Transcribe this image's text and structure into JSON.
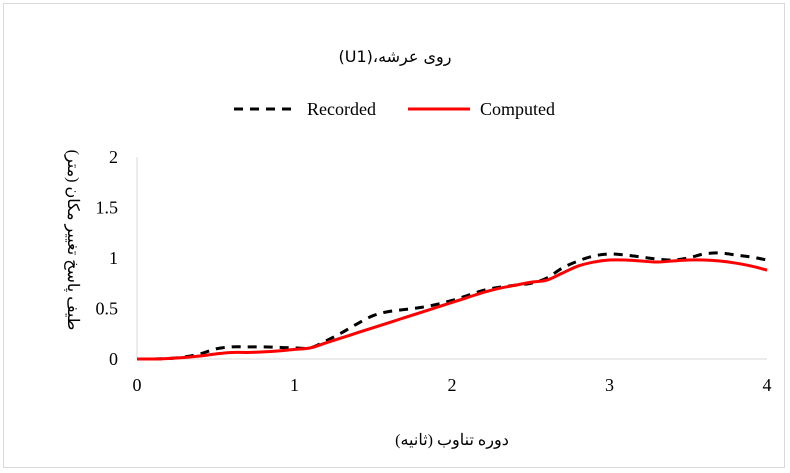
{
  "chart_data": {
    "type": "line",
    "title": "روی عرشه،(U1)",
    "xlabel": "دوره تناوب (ثانیه)",
    "ylabel": "طیف پاسخ تغییر مکان (متر)",
    "xlim": [
      0,
      4
    ],
    "ylim": [
      0,
      2
    ],
    "x_ticks": [
      "0",
      "1",
      "2",
      "3",
      "4"
    ],
    "y_ticks": [
      "0",
      "0.5",
      "1",
      "1.5",
      "2"
    ],
    "grid": false,
    "legend_position": "top",
    "series": [
      {
        "name": "Recorded",
        "color": "#000000",
        "dash": "dashed",
        "x": [
          0,
          0.1,
          0.2,
          0.3,
          0.4,
          0.5,
          0.6,
          0.7,
          0.8,
          0.9,
          1.0,
          1.1,
          1.2,
          1.3,
          1.4,
          1.5,
          1.6,
          1.7,
          1.8,
          1.9,
          2.0,
          2.1,
          2.2,
          2.3,
          2.4,
          2.5,
          2.6,
          2.7,
          2.8,
          2.9,
          3.0,
          3.1,
          3.2,
          3.3,
          3.4,
          3.5,
          3.6,
          3.7,
          3.8,
          3.9,
          4.0
        ],
        "y": [
          0.0,
          0.0,
          0.005,
          0.02,
          0.05,
          0.1,
          0.12,
          0.12,
          0.12,
          0.115,
          0.11,
          0.11,
          0.18,
          0.26,
          0.35,
          0.43,
          0.47,
          0.49,
          0.51,
          0.54,
          0.58,
          0.63,
          0.68,
          0.71,
          0.73,
          0.75,
          0.8,
          0.9,
          0.97,
          1.02,
          1.04,
          1.03,
          1.01,
          0.99,
          0.98,
          1.0,
          1.04,
          1.05,
          1.03,
          1.01,
          0.98
        ]
      },
      {
        "name": "Computed",
        "color": "#ff0000",
        "dash": "solid",
        "x": [
          0,
          0.1,
          0.2,
          0.3,
          0.4,
          0.5,
          0.6,
          0.7,
          0.8,
          0.9,
          1.0,
          1.1,
          1.2,
          1.3,
          1.4,
          1.5,
          1.6,
          1.7,
          1.8,
          1.9,
          2.0,
          2.1,
          2.2,
          2.3,
          2.4,
          2.5,
          2.6,
          2.7,
          2.8,
          2.9,
          3.0,
          3.1,
          3.2,
          3.3,
          3.4,
          3.5,
          3.6,
          3.7,
          3.8,
          3.9,
          4.0
        ],
        "y": [
          0.0,
          0.0,
          0.005,
          0.015,
          0.03,
          0.05,
          0.065,
          0.065,
          0.07,
          0.08,
          0.095,
          0.11,
          0.16,
          0.21,
          0.26,
          0.31,
          0.36,
          0.41,
          0.46,
          0.51,
          0.56,
          0.61,
          0.66,
          0.7,
          0.73,
          0.76,
          0.78,
          0.85,
          0.92,
          0.96,
          0.98,
          0.98,
          0.97,
          0.96,
          0.97,
          0.98,
          0.98,
          0.97,
          0.95,
          0.92,
          0.88
        ]
      }
    ]
  }
}
